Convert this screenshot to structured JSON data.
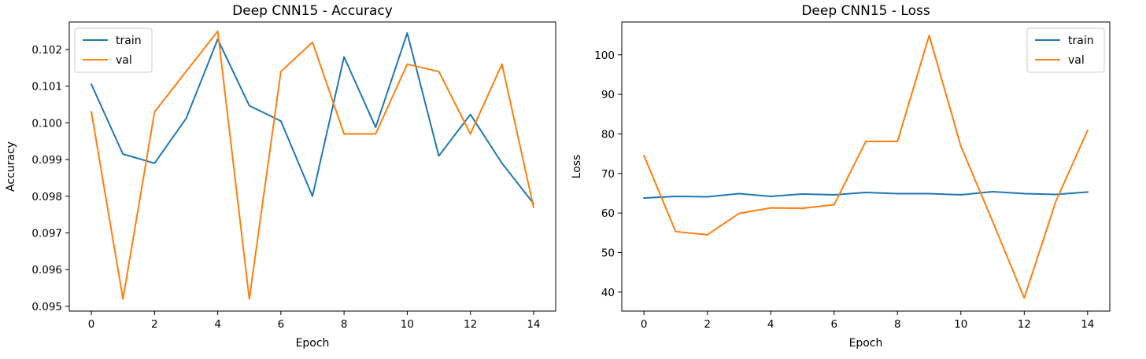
{
  "chart_data": [
    {
      "type": "line",
      "title": "Deep CNN15 - Accuracy",
      "xlabel": "Epoch",
      "ylabel": "Accuracy",
      "x": [
        0,
        1,
        2,
        3,
        4,
        5,
        6,
        7,
        8,
        9,
        10,
        11,
        12,
        13,
        14
      ],
      "xlim": [
        -0.7,
        14.7
      ],
      "ylim": [
        0.09487,
        0.10275
      ],
      "xticks": [
        0,
        2,
        4,
        6,
        8,
        10,
        12,
        14
      ],
      "yticks": [
        0.095,
        0.096,
        0.097,
        0.098,
        0.099,
        0.1,
        0.101,
        0.102
      ],
      "ytick_labels": [
        "0.095",
        "0.096",
        "0.097",
        "0.098",
        "0.099",
        "0.100",
        "0.101",
        "0.102"
      ],
      "legend_position": "upper-left",
      "series": [
        {
          "name": "train",
          "color": "#1f77b4",
          "values": [
            0.10105,
            0.09915,
            0.0989,
            0.10012,
            0.10228,
            0.10047,
            0.10005,
            0.098,
            0.1018,
            0.09988,
            0.10245,
            0.0991,
            0.10023,
            0.0989,
            0.0978
          ]
        },
        {
          "name": "val",
          "color": "#ff7f0e",
          "values": [
            0.1003,
            0.0952,
            0.1003,
            0.1014,
            0.1025,
            0.0952,
            0.1014,
            0.1022,
            0.0997,
            0.0997,
            0.1016,
            0.1014,
            0.0997,
            0.1016,
            0.0977
          ]
        }
      ]
    },
    {
      "type": "line",
      "title": "Deep CNN15 - Loss",
      "xlabel": "Epoch",
      "ylabel": "Loss",
      "x": [
        0,
        1,
        2,
        3,
        4,
        5,
        6,
        7,
        8,
        9,
        10,
        11,
        12,
        13,
        14
      ],
      "xlim": [
        -0.7,
        14.7
      ],
      "ylim": [
        35.2,
        108.3
      ],
      "xticks": [
        0,
        2,
        4,
        6,
        8,
        10,
        12,
        14
      ],
      "yticks": [
        40,
        50,
        60,
        70,
        80,
        90,
        100
      ],
      "ytick_labels": [
        "40",
        "50",
        "60",
        "70",
        "80",
        "90",
        "100"
      ],
      "legend_position": "upper-right",
      "series": [
        {
          "name": "train",
          "color": "#1f77b4",
          "values": [
            63.8,
            64.2,
            64.1,
            64.9,
            64.2,
            64.8,
            64.6,
            65.2,
            64.9,
            64.9,
            64.6,
            65.4,
            64.9,
            64.7,
            65.3
          ]
        },
        {
          "name": "val",
          "color": "#ff7f0e",
          "values": [
            74.5,
            55.3,
            54.5,
            59.9,
            61.3,
            61.2,
            62.1,
            78.1,
            78.1,
            104.9,
            76.9,
            57.9,
            38.5,
            63.0,
            80.9
          ]
        }
      ]
    }
  ]
}
